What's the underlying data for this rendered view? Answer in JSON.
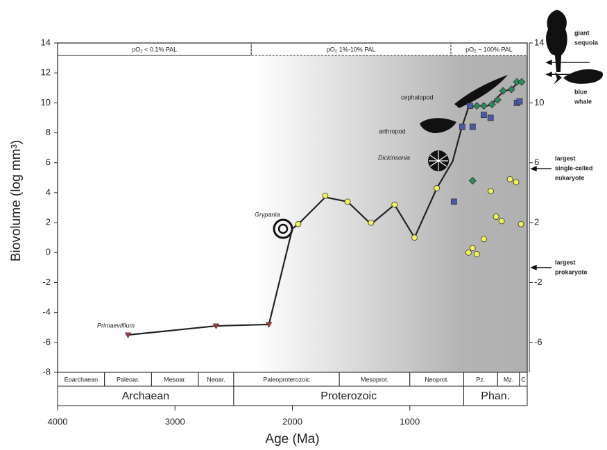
{
  "chart_data": {
    "type": "line",
    "y_label": "Biovolume (log mm³)",
    "x_label": "Age (Ma)",
    "xlim": [
      4000,
      0
    ],
    "xticks": [
      4000,
      3000,
      2000,
      1000
    ],
    "ylim": [
      -8,
      14
    ],
    "yticks": [
      -8,
      -6,
      -4,
      -2,
      0,
      2,
      4,
      6,
      8,
      10,
      12,
      14
    ],
    "y2lim": [
      -8,
      14
    ],
    "y2ticks": [
      14,
      10,
      6,
      2,
      -2,
      -6
    ],
    "oxygen_bands": [
      {
        "label": "pO₂ < 0.1% PAL",
        "start": 4000,
        "end": 2350
      },
      {
        "label": "pO₂ 1%-10% PAL",
        "start": 2350,
        "end": 650
      },
      {
        "label": "pO₂ ~ 100% PAL",
        "start": 650,
        "end": 0
      }
    ],
    "eras": [
      {
        "label": "Eoarchaean",
        "start": 4000,
        "end": 3600
      },
      {
        "label": "Paleoar.",
        "start": 3600,
        "end": 3200
      },
      {
        "label": "Mesoar.",
        "start": 3200,
        "end": 2800
      },
      {
        "label": "Neoar.",
        "start": 2800,
        "end": 2500
      },
      {
        "label": "Paleoproterozoic",
        "start": 2500,
        "end": 1600
      },
      {
        "label": "Mesoprot.",
        "start": 1600,
        "end": 1000
      },
      {
        "label": "Neoprot.",
        "start": 1000,
        "end": 541
      },
      {
        "label": "Pz.",
        "start": 541,
        "end": 252
      },
      {
        "label": "Mz.",
        "start": 252,
        "end": 66
      },
      {
        "label": "C",
        "start": 66,
        "end": 0
      }
    ],
    "eons": [
      {
        "label": "Archaean",
        "start": 4000,
        "end": 2500
      },
      {
        "label": "Proterozoic",
        "start": 2500,
        "end": 541
      },
      {
        "label": "Phan.",
        "start": 541,
        "end": 0
      }
    ],
    "series": [
      {
        "color": "#222222",
        "marker": "none",
        "x": [
          3400,
          2650,
          2200,
          2000,
          1950,
          1720,
          1530,
          1330,
          1130,
          960,
          770,
          635,
          560,
          500,
          430,
          340,
          300,
          250,
          195,
          135,
          75
        ],
        "values": [
          -5.5,
          -4.9,
          -4.8,
          1.6,
          1.9,
          3.7,
          3.4,
          1.9,
          3.2,
          1.0,
          4.3,
          6.1,
          8.3,
          9.7,
          9.8,
          9.8,
          9.9,
          10.4,
          10.8,
          10.9,
          11.4
        ]
      },
      {
        "color": "#c0303a",
        "marker": "triangle",
        "x": [
          3400,
          2650,
          2200
        ],
        "values": [
          -5.5,
          -4.9,
          -4.8
        ]
      },
      {
        "color": "#f2f25a",
        "marker": "circle",
        "x": [
          1950,
          1720,
          1530,
          1330,
          1130,
          960,
          770,
          500,
          465,
          430,
          370,
          310,
          265,
          218,
          147,
          94,
          53
        ],
        "values": [
          1.9,
          3.8,
          3.4,
          2.0,
          3.2,
          1.0,
          4.3,
          0.0,
          0.3,
          -0.1,
          0.9,
          4.1,
          2.4,
          2.1,
          4.9,
          4.7,
          1.9
        ]
      },
      {
        "color": "#4a5aa8",
        "marker": "square",
        "x": [
          624,
          553,
          488,
          465,
          370,
          312,
          88,
          65
        ],
        "values": [
          3.4,
          8.4,
          9.8,
          8.4,
          9.2,
          9.0,
          10.0,
          10.1
        ]
      },
      {
        "color": "#2a8a5a",
        "marker": "diamond",
        "x": [
          465,
          429,
          370,
          300,
          253,
          206,
          135,
          88,
          47
        ],
        "values": [
          4.8,
          9.8,
          9.8,
          9.9,
          10.2,
          10.8,
          10.9,
          11.4,
          11.4
        ]
      }
    ],
    "organisms": [
      "Primaevifilum",
      "Grypania",
      "Dickinsonia",
      "arthropod",
      "cephalopod"
    ],
    "size_markers": [
      {
        "text": [
          "giant",
          "sequoia"
        ],
        "y": 12.7
      },
      {
        "text": [
          "blue",
          "whale"
        ],
        "y": 11.9
      },
      {
        "text": [
          "largest",
          "single-celled",
          "eukaryote"
        ],
        "y": 5.6
      },
      {
        "text": [
          "largest",
          "prokaryote"
        ],
        "y": -1.0
      }
    ]
  }
}
